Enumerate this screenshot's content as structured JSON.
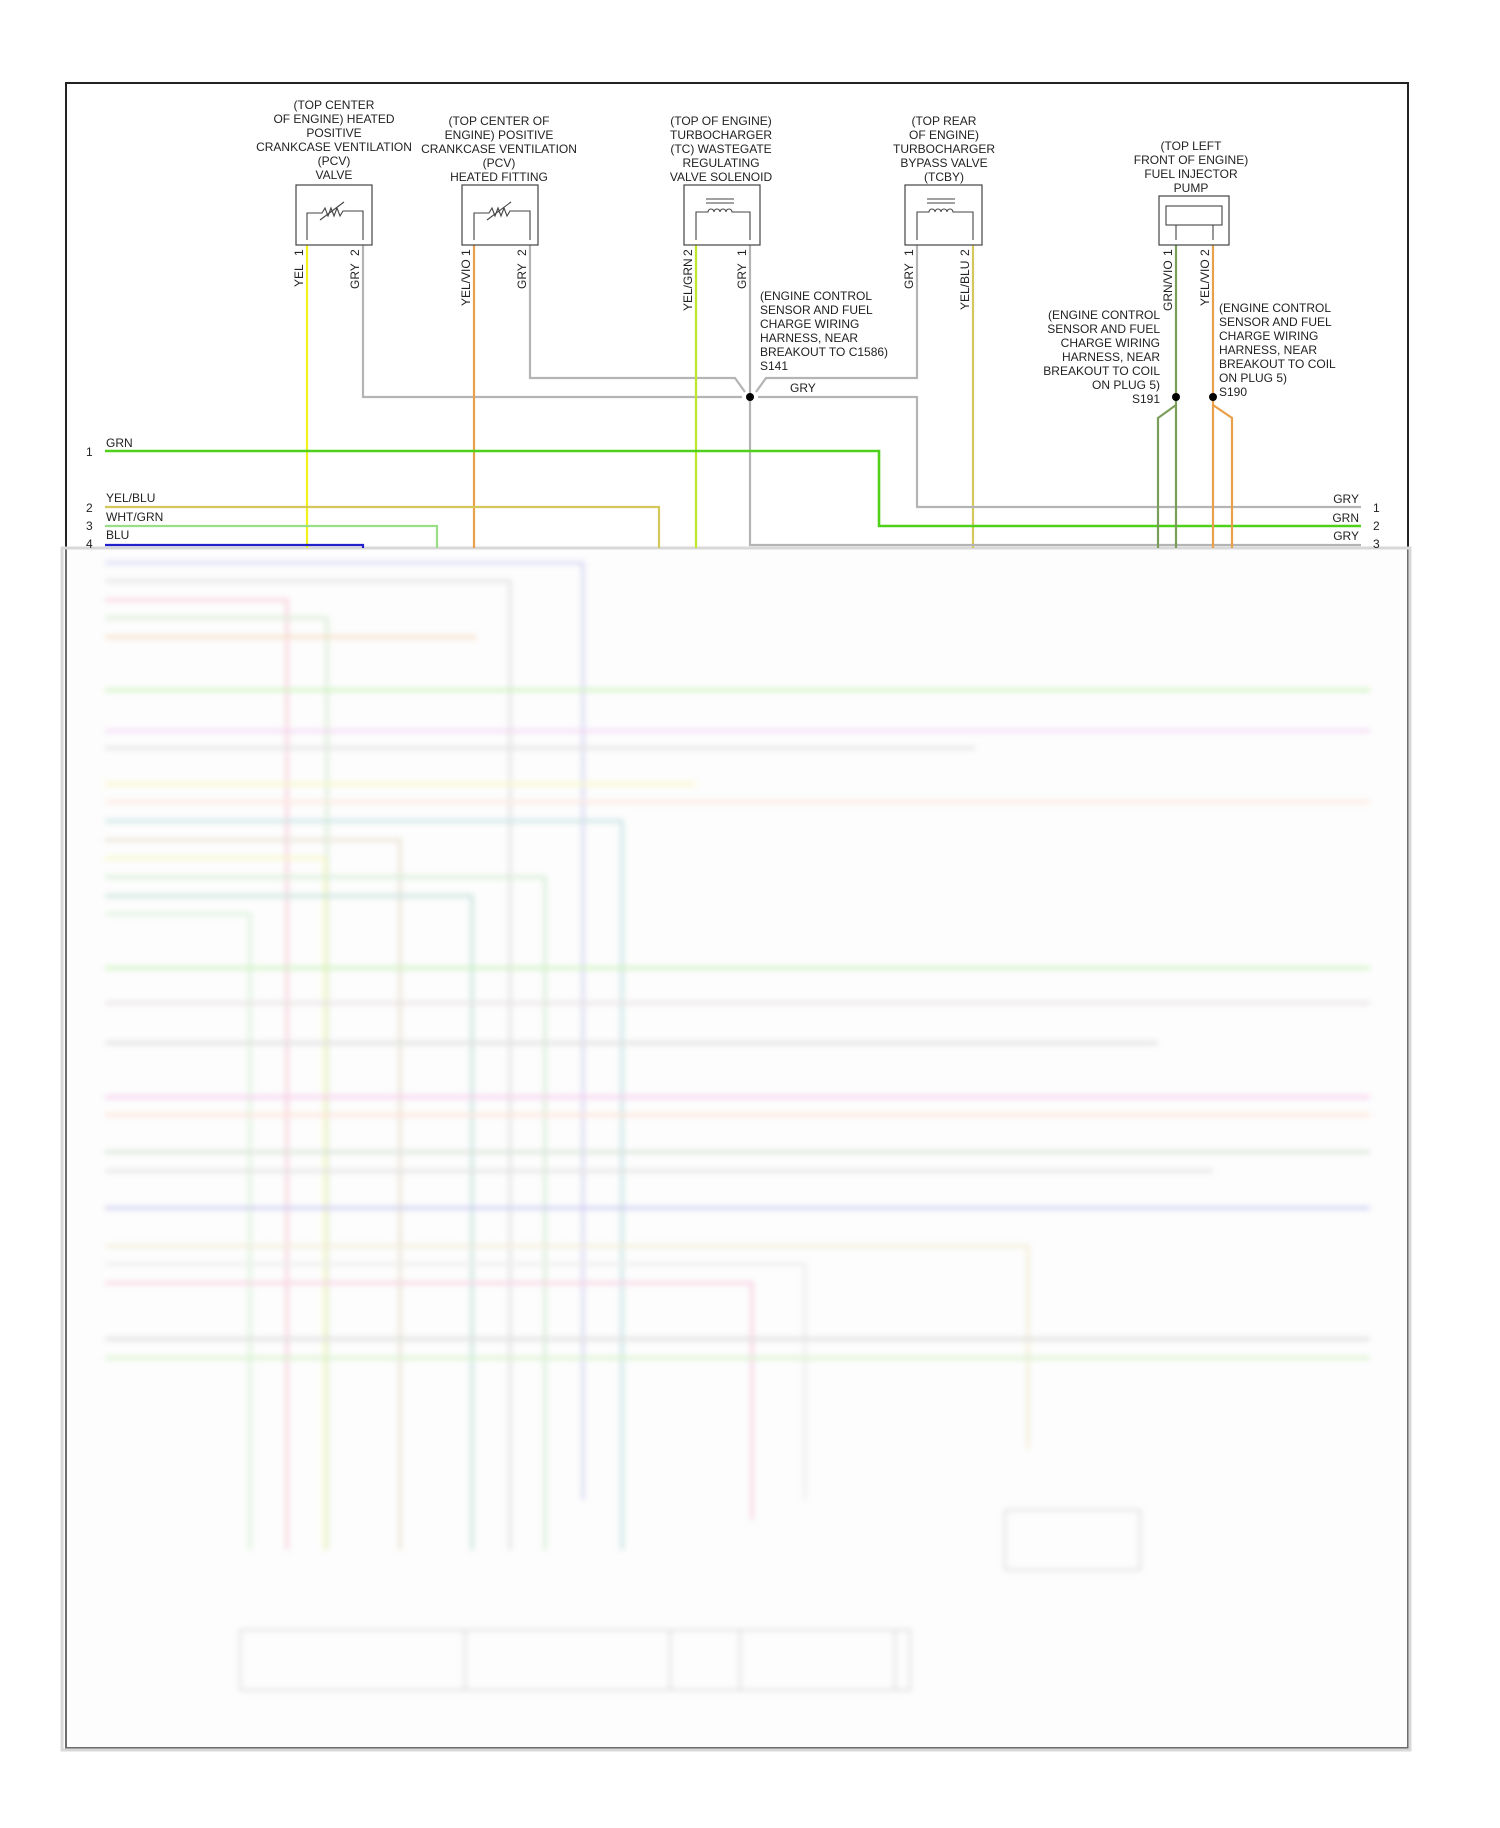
{
  "components": [
    {
      "label_lines": [
        "(TOP CENTER",
        "OF ENGINE) HEATED",
        "POSITIVE",
        "CRANKCASE VENTILATION",
        "(PCV)",
        "VALVE"
      ],
      "pins": [
        {
          "num": "1",
          "wire": "YEL"
        },
        {
          "num": "2",
          "wire": "GRY"
        }
      ],
      "symbol": "heater-resistor-icon"
    },
    {
      "label_lines": [
        "(TOP CENTER OF",
        "ENGINE) POSITIVE",
        "CRANKCASE VENTILATION",
        "(PCV)",
        "HEATED FITTING"
      ],
      "pins": [
        {
          "num": "1",
          "wire": "YEL/VIO"
        },
        {
          "num": "2",
          "wire": "GRY"
        }
      ],
      "symbol": "heater-resistor-icon"
    },
    {
      "label_lines": [
        "(TOP OF ENGINE)",
        "TURBOCHARGER",
        "(TC) WASTEGATE",
        "REGULATING",
        "VALVE SOLENOID"
      ],
      "pins": [
        {
          "num": "2",
          "wire": "YEL/GRN"
        },
        {
          "num": "1",
          "wire": "GRY"
        }
      ],
      "symbol": "solenoid-coil-icon"
    },
    {
      "label_lines": [
        "(TOP REAR",
        "OF ENGINE)",
        "TURBOCHARGER",
        "BYPASS VALVE",
        "(TCBY)"
      ],
      "pins": [
        {
          "num": "1",
          "wire": "GRY"
        },
        {
          "num": "2",
          "wire": "YEL/BLU"
        }
      ],
      "symbol": "solenoid-coil-icon"
    },
    {
      "label_lines": [
        "(TOP LEFT",
        "FRONT OF ENGINE)",
        "FUEL INJECTOR",
        "PUMP"
      ],
      "pins": [
        {
          "num": "1",
          "wire": "GRN/VIO"
        },
        {
          "num": "2",
          "wire": "YEL/VIO"
        }
      ],
      "symbol": "pump-element-icon"
    }
  ],
  "splices": [
    {
      "id": "S141",
      "label_lines": [
        "(ENGINE CONTROL",
        "SENSOR AND FUEL",
        "CHARGE WIRING",
        "HARNESS, NEAR",
        "BREAKOUT TO C1586)",
        "S141"
      ],
      "wire": "GRY"
    },
    {
      "id": "S191",
      "label_lines": [
        "(ENGINE CONTROL",
        "SENSOR AND FUEL",
        "CHARGE WIRING",
        "HARNESS, NEAR",
        "BREAKOUT TO COIL",
        "ON PLUG 5)",
        "S191"
      ]
    },
    {
      "id": "S190",
      "label_lines": [
        "(ENGINE CONTROL",
        "SENSOR AND FUEL",
        "CHARGE WIRING",
        "HARNESS, NEAR",
        "BREAKOUT TO COIL",
        "ON PLUG 5)",
        "S190"
      ]
    }
  ],
  "left_connector": [
    {
      "pin": "1",
      "wire": "GRN"
    },
    {
      "pin": "2",
      "wire": "YEL/BLU"
    },
    {
      "pin": "3",
      "wire": "WHT/GRN"
    },
    {
      "pin": "4",
      "wire": "BLU"
    }
  ],
  "right_connector": [
    {
      "pin": "1",
      "wire": "GRY"
    },
    {
      "pin": "2",
      "wire": "GRN"
    },
    {
      "pin": "3",
      "wire": "GRY"
    }
  ],
  "wire_colors": {
    "GRY": "#b4b4b4",
    "GRN": "#4fd11c",
    "YEL": "#f2f21a",
    "YEL/VIO": "#e9a04a",
    "YEL/GRN": "#bde82a",
    "YEL/BLU": "#d5c85a",
    "WHT/GRN": "#9adf86",
    "BLU": "#2222cc",
    "GRN/VIO": "#7a9e5a"
  }
}
